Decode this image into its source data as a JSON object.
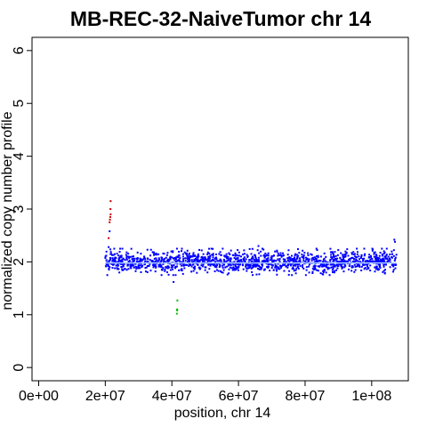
{
  "chart_data": {
    "type": "scatter",
    "title": "MB-REC-32-NaiveTumor chr 14",
    "xlabel": "position, chr 14",
    "ylabel": "normalized copy number profile",
    "xlim": [
      -2000000,
      111000000
    ],
    "ylim": [
      -0.25,
      6.25
    ],
    "x_ticks": [
      0,
      20000000,
      40000000,
      60000000,
      80000000,
      100000000
    ],
    "x_tick_labels": [
      "0e+00",
      "2e+07",
      "4e+07",
      "6e+07",
      "8e+07",
      "1e+08"
    ],
    "y_ticks": [
      0,
      1,
      2,
      3,
      4,
      5,
      6
    ],
    "y_tick_labels": [
      "0",
      "1",
      "2",
      "3",
      "4",
      "5",
      "6"
    ],
    "grid": false,
    "legend": "none",
    "colors": {
      "normal": "#0000ff",
      "gain": "#cc0000",
      "loss": "#00bb00",
      "segment": "#aaccff"
    },
    "series": [
      {
        "color_key": "normal",
        "density": "dense",
        "x_range": [
          20000000,
          107500000
        ],
        "typical_y_range": [
          1.8,
          2.2
        ],
        "extreme_points": [
          {
            "x": 40500000,
            "y": 1.62
          },
          {
            "x": 21000000,
            "y": 2.28
          },
          {
            "x": 66000000,
            "y": 2.3
          },
          {
            "x": 106800000,
            "y": 2.42
          },
          {
            "x": 107000000,
            "y": 2.38
          },
          {
            "x": 21300000,
            "y": 2.58
          }
        ]
      },
      {
        "color_key": "gain",
        "points": [
          {
            "x": 21000000,
            "y": 2.45
          },
          {
            "x": 21300000,
            "y": 2.75
          },
          {
            "x": 21400000,
            "y": 2.8
          },
          {
            "x": 21500000,
            "y": 2.85
          },
          {
            "x": 21600000,
            "y": 2.9
          },
          {
            "x": 21550000,
            "y": 3.0
          },
          {
            "x": 21600000,
            "y": 3.15
          }
        ]
      },
      {
        "color_key": "loss",
        "points": [
          {
            "x": 41500000,
            "y": 1.02
          },
          {
            "x": 41600000,
            "y": 1.08
          },
          {
            "x": 41550000,
            "y": 1.1
          },
          {
            "x": 41650000,
            "y": 1.27
          }
        ]
      }
    ],
    "segments": [
      {
        "x_start": 20000000,
        "x_end": 107500000,
        "y": 1.98
      }
    ]
  }
}
